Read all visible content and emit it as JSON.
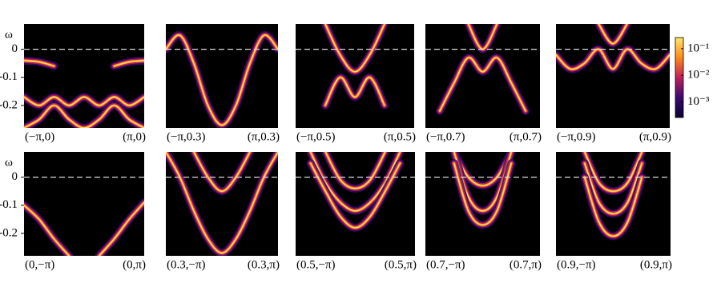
{
  "chart_data": [
    {
      "type": "spectral",
      "ylabel": "ω",
      "yticks": [
        0,
        -0.1,
        -0.2
      ],
      "ylim": [
        -0.28,
        0.09
      ],
      "reference_line": 0,
      "xlabels": [
        "(−π,0)",
        "(π,0)"
      ],
      "x": [
        -1,
        -0.75,
        -0.5,
        -0.25,
        0,
        0.25,
        0.5,
        0.75,
        1
      ],
      "series": [
        {
          "values": [
            -0.04,
            -0.045,
            -0.06,
            null,
            null,
            null,
            -0.06,
            -0.045,
            -0.04
          ]
        },
        {
          "values": [
            -0.17,
            -0.2,
            -0.17,
            -0.2,
            -0.17,
            -0.2,
            -0.17,
            -0.2,
            -0.17
          ]
        },
        {
          "values": [
            -0.28,
            -0.25,
            -0.2,
            -0.25,
            -0.28,
            -0.25,
            -0.2,
            -0.25,
            -0.28
          ]
        }
      ]
    },
    {
      "type": "spectral",
      "ylim": [
        -0.28,
        0.09
      ],
      "reference_line": 0,
      "xlabels": [
        "(−π,0.3)",
        "(π,0.3)"
      ],
      "x": [
        -1,
        -0.75,
        -0.5,
        -0.25,
        0,
        0.25,
        0.5,
        0.75,
        1
      ],
      "series": [
        {
          "values": [
            0.0,
            0.05,
            -0.05,
            -0.2,
            -0.27,
            -0.2,
            -0.05,
            0.05,
            0.0
          ]
        }
      ]
    },
    {
      "type": "spectral",
      "ylim": [
        -0.28,
        0.09
      ],
      "reference_line": 0,
      "xlabels": [
        "(−π,0.5)",
        "(π,0.5)"
      ],
      "x": [
        -1,
        -0.75,
        -0.5,
        -0.25,
        0,
        0.25,
        0.5,
        0.75,
        1
      ],
      "series": [
        {
          "values": [
            null,
            null,
            0.09,
            -0.02,
            -0.08,
            -0.02,
            0.09,
            null,
            null
          ]
        },
        {
          "values": [
            null,
            null,
            -0.2,
            -0.1,
            -0.17,
            -0.1,
            -0.2,
            null,
            null
          ]
        }
      ]
    },
    {
      "type": "spectral",
      "ylim": [
        -0.28,
        0.09
      ],
      "reference_line": 0,
      "xlabels": [
        "(−π,0.7)",
        "(π,0.7)"
      ],
      "x": [
        -1,
        -0.75,
        -0.5,
        -0.25,
        0,
        0.25,
        0.5,
        0.75,
        1
      ],
      "series": [
        {
          "values": [
            null,
            null,
            null,
            0.09,
            0.0,
            0.09,
            null,
            null,
            null
          ]
        },
        {
          "values": [
            null,
            -0.22,
            -0.12,
            -0.03,
            -0.08,
            -0.03,
            -0.12,
            -0.22,
            null
          ]
        }
      ]
    },
    {
      "type": "spectral",
      "ylim": [
        -0.28,
        0.09
      ],
      "reference_line": 0,
      "xlabels": [
        "(−π,0.9)",
        "(π,0.9)"
      ],
      "x": [
        -1,
        -0.75,
        -0.5,
        -0.25,
        0,
        0.25,
        0.5,
        0.75,
        1
      ],
      "series": [
        {
          "values": [
            null,
            null,
            null,
            0.09,
            0.02,
            0.09,
            null,
            null,
            null
          ]
        },
        {
          "values": [
            -0.02,
            -0.07,
            -0.05,
            0.0,
            -0.07,
            0.0,
            -0.05,
            -0.07,
            -0.02
          ]
        }
      ]
    },
    {
      "type": "spectral",
      "ylabel": "ω",
      "yticks": [
        0,
        -0.1,
        -0.2
      ],
      "ylim": [
        -0.28,
        0.09
      ],
      "reference_line": 0,
      "xlabels": [
        "(0,−π)",
        "(0,π)"
      ],
      "x": [
        -1,
        -0.75,
        -0.5,
        -0.25,
        0,
        0.25,
        0.5,
        0.75,
        1
      ],
      "series": [
        {
          "values": [
            -0.1,
            -0.15,
            -0.22,
            -0.28,
            null,
            -0.28,
            -0.22,
            -0.15,
            -0.09
          ]
        }
      ]
    },
    {
      "type": "spectral",
      "ylim": [
        -0.28,
        0.09
      ],
      "reference_line": 0,
      "xlabels": [
        "(0.3,−π)",
        "(0.3,π)"
      ],
      "x": [
        -1,
        -0.75,
        -0.5,
        -0.25,
        0,
        0.25,
        0.5,
        0.75,
        1
      ],
      "series": [
        {
          "values": [
            0.09,
            0.0,
            -0.12,
            -0.22,
            -0.27,
            -0.22,
            -0.12,
            0.0,
            0.09
          ]
        },
        {
          "values": [
            null,
            null,
            0.09,
            0.0,
            -0.05,
            0.0,
            0.09,
            null,
            null
          ]
        }
      ]
    },
    {
      "type": "spectral",
      "ylim": [
        -0.28,
        0.09
      ],
      "reference_line": 0,
      "xlabels": [
        "(0.5,−π)",
        "(0.5,π)"
      ],
      "x": [
        -1,
        -0.75,
        -0.5,
        -0.25,
        0,
        0.25,
        0.5,
        0.75,
        1
      ],
      "series": [
        {
          "values": [
            null,
            0.09,
            -0.02,
            -0.09,
            -0.12,
            -0.09,
            -0.02,
            0.09,
            null
          ]
        },
        {
          "values": [
            null,
            0.05,
            -0.05,
            -0.14,
            -0.18,
            -0.14,
            -0.05,
            0.05,
            null
          ]
        },
        {
          "values": [
            null,
            null,
            0.09,
            -0.01,
            -0.04,
            -0.01,
            0.09,
            null,
            null
          ]
        }
      ]
    },
    {
      "type": "spectral",
      "ylim": [
        -0.28,
        0.09
      ],
      "reference_line": 0,
      "xlabels": [
        "(0.7,−π)",
        "(0.7,π)"
      ],
      "x": [
        -1,
        -0.75,
        -0.5,
        -0.25,
        0,
        0.25,
        0.5,
        0.75,
        1
      ],
      "series": [
        {
          "values": [
            null,
            null,
            0.09,
            0.0,
            -0.03,
            0.0,
            0.09,
            null,
            null
          ]
        },
        {
          "values": [
            null,
            null,
            0.09,
            -0.07,
            -0.12,
            -0.07,
            0.09,
            null,
            null
          ]
        },
        {
          "values": [
            null,
            null,
            0.05,
            -0.12,
            -0.17,
            -0.12,
            0.05,
            null,
            null
          ]
        }
      ]
    },
    {
      "type": "spectral",
      "ylim": [
        -0.28,
        0.09
      ],
      "reference_line": 0,
      "xlabels": [
        "(0.9,−π)",
        "(0.9,π)"
      ],
      "x": [
        -1,
        -0.75,
        -0.5,
        -0.25,
        0,
        0.25,
        0.5,
        0.75,
        1
      ],
      "series": [
        {
          "values": [
            null,
            null,
            0.09,
            -0.02,
            -0.05,
            -0.02,
            0.09,
            null,
            null
          ]
        },
        {
          "values": [
            null,
            null,
            0.05,
            -0.09,
            -0.13,
            -0.09,
            0.05,
            null,
            null
          ]
        },
        {
          "values": [
            null,
            null,
            0.0,
            -0.16,
            -0.21,
            -0.16,
            0.0,
            null,
            null
          ]
        }
      ]
    },
    {
      "type": "colorbar",
      "log_scale": true,
      "clim": [
        0.00026,
        0.26
      ],
      "colors": [
        "#0a0030",
        "#3a0a70",
        "#c0205a",
        "#ff8a1a",
        "#ffe86a"
      ],
      "ticks": [
        {
          "value": 0.1,
          "label": "10⁻¹"
        },
        {
          "value": 0.01,
          "label": "10⁻²"
        },
        {
          "value": 0.001,
          "label": "10⁻³"
        }
      ]
    }
  ]
}
